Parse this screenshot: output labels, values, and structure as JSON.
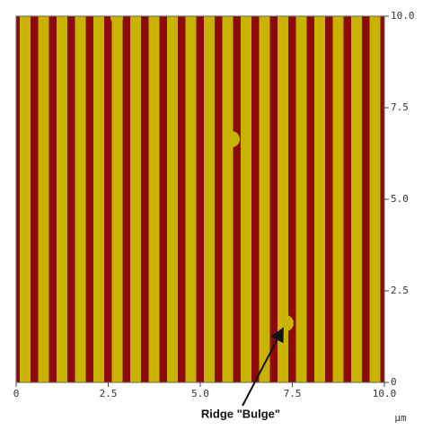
{
  "chart_data": {
    "type": "image",
    "xlim": [
      0,
      10
    ],
    "xticks": [
      0,
      2.5,
      {
        "value": 5,
        "label": "5.0"
      },
      7.5,
      {
        "value": 10,
        "label": "10.0"
      }
    ],
    "ylim": [
      0,
      10
    ],
    "yticks": [
      0,
      2.5,
      {
        "value": 5,
        "label": "5.0"
      },
      7.5,
      {
        "value": 10,
        "label": "10.0"
      }
    ],
    "x_label": "µm",
    "annotation": "Ridge \"Bulge\""
  }
}
